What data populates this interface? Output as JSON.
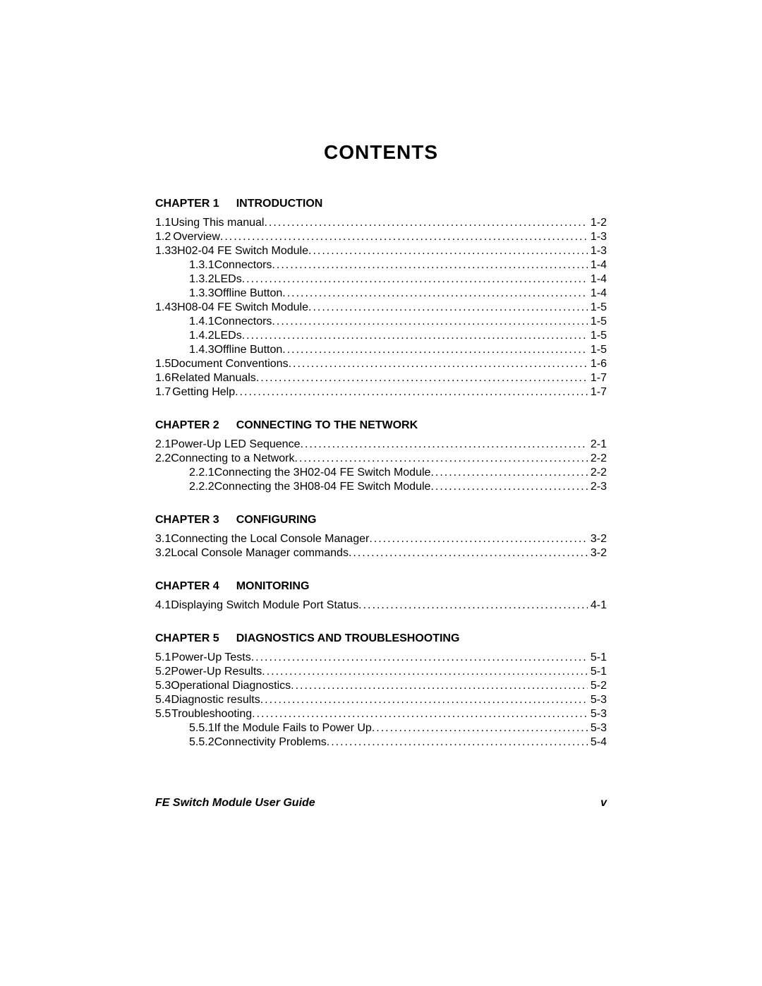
{
  "title": "CONTENTS",
  "footer": {
    "left": "FE Switch Module User Guide",
    "right": "v"
  },
  "chapters": [
    {
      "label": "CHAPTER 1",
      "title": "INTRODUCTION",
      "entries": [
        {
          "level": 1,
          "num": "1.1",
          "title": "Using This manual",
          "page": "1-2"
        },
        {
          "level": 1,
          "num": "1.2",
          "title": "Overview",
          "page": "1-3"
        },
        {
          "level": 1,
          "num": "1.3",
          "title": "3H02-04 FE Switch Module",
          "page": "1-3"
        },
        {
          "level": 2,
          "num": "1.3.1",
          "title": "Connectors",
          "page": "1-4"
        },
        {
          "level": 2,
          "num": "1.3.2",
          "title": "LEDs",
          "page": "1-4"
        },
        {
          "level": 2,
          "num": "1.3.3",
          "title": "Offline Button",
          "page": "1-4"
        },
        {
          "level": 1,
          "num": "1.4",
          "title": "3H08-04 FE Switch Module",
          "page": "1-5"
        },
        {
          "level": 2,
          "num": "1.4.1",
          "title": "Connectors",
          "page": "1-5"
        },
        {
          "level": 2,
          "num": "1.4.2",
          "title": "LEDs",
          "page": "1-5"
        },
        {
          "level": 2,
          "num": "1.4.3",
          "title": "Offline Button",
          "page": "1-5"
        },
        {
          "level": 1,
          "num": "1.5",
          "title": "Document Conventions",
          "page": "1-6"
        },
        {
          "level": 1,
          "num": "1.6",
          "title": "Related Manuals",
          "page": "1-7"
        },
        {
          "level": 1,
          "num": "1.7",
          "title": "Getting Help",
          "page": "1-7"
        }
      ]
    },
    {
      "label": "CHAPTER 2",
      "title": "CONNECTING TO THE NETWORK",
      "entries": [
        {
          "level": 1,
          "num": "2.1",
          "title": "Power-Up LED Sequence",
          "page": "2-1"
        },
        {
          "level": 1,
          "num": "2.2",
          "title": "Connecting to a Network",
          "page": "2-2"
        },
        {
          "level": 2,
          "num": "2.2.1",
          "title": "Connecting the 3H02-04 FE Switch Module",
          "page": "2-2"
        },
        {
          "level": 2,
          "num": "2.2.2",
          "title": "Connecting the 3H08-04 FE Switch Module",
          "page": "2-3"
        }
      ]
    },
    {
      "label": "CHAPTER 3",
      "title": "CONFIGURING",
      "entries": [
        {
          "level": 1,
          "num": "3.1",
          "title": "Connecting the Local Console Manager",
          "page": "3-2"
        },
        {
          "level": 1,
          "num": "3.2",
          "title": "Local Console Manager commands",
          "page": "3-2"
        }
      ]
    },
    {
      "label": "CHAPTER 4",
      "title": "MONITORING",
      "entries": [
        {
          "level": 1,
          "num": "4.1",
          "title": "Displaying Switch Module Port Status",
          "page": "4-1"
        }
      ]
    },
    {
      "label": "CHAPTER 5",
      "title": "DIAGNOSTICS AND TROUBLESHOOTING",
      "entries": [
        {
          "level": 1,
          "num": "5.1",
          "title": "Power-Up Tests",
          "page": "5-1"
        },
        {
          "level": 1,
          "num": "5.2",
          "title": "Power-Up Results",
          "page": "5-1"
        },
        {
          "level": 1,
          "num": "5.3",
          "title": "Operational Diagnostics",
          "page": "5-2"
        },
        {
          "level": 1,
          "num": "5.4",
          "title": "Diagnostic results",
          "page": "5-3"
        },
        {
          "level": 1,
          "num": "5.5",
          "title": "Troubleshooting",
          "page": "5-3"
        },
        {
          "level": 2,
          "num": "5.5.1",
          "title": "If the Module Fails to Power Up",
          "page": "5-3"
        },
        {
          "level": 2,
          "num": "5.5.2",
          "title": "Connectivity Problems",
          "page": "5-4"
        }
      ]
    }
  ]
}
